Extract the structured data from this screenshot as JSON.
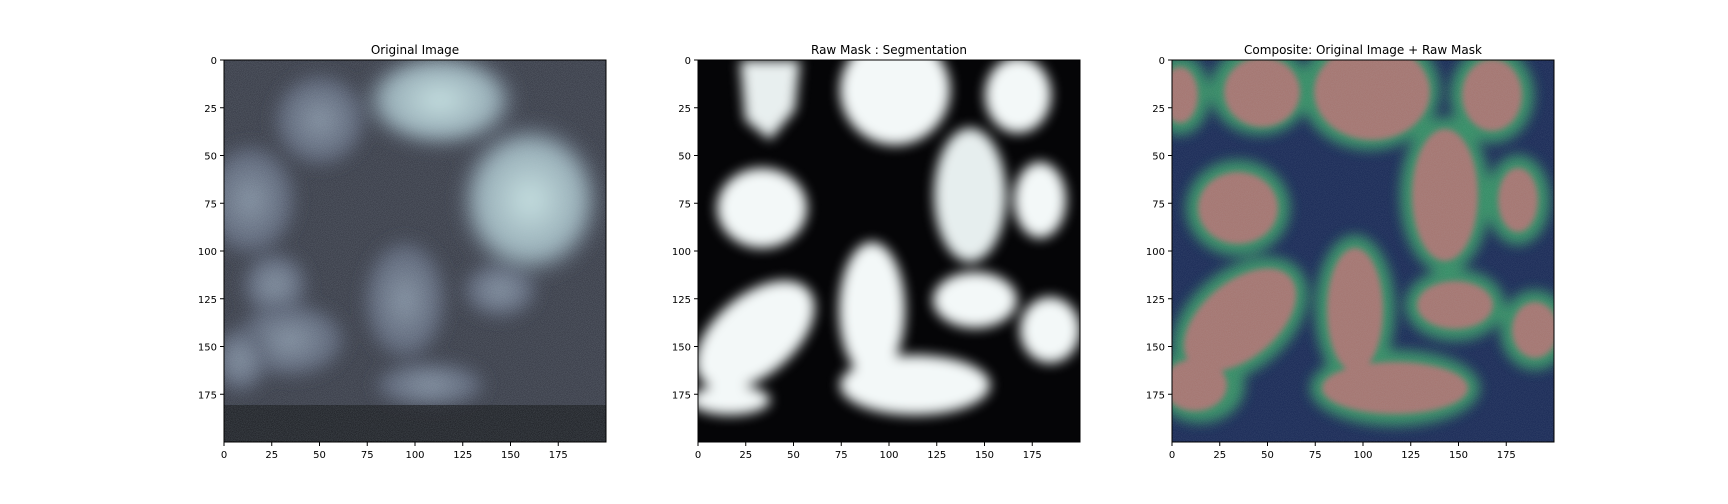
{
  "figure": {
    "panels": [
      {
        "title": "Original Image",
        "x_ticks": [
          "0",
          "25",
          "50",
          "75",
          "100",
          "125",
          "150",
          "175"
        ],
        "y_ticks": [
          "0",
          "25",
          "50",
          "75",
          "100",
          "125",
          "150",
          "175"
        ],
        "colormap": "bone",
        "colors": {
          "low": "#000000",
          "mid": "#545d73",
          "high": "#c6e2e2"
        }
      },
      {
        "title": "Raw Mask : Segmentation",
        "x_ticks": [
          "0",
          "25",
          "50",
          "75",
          "100",
          "125",
          "150",
          "175"
        ],
        "y_ticks": [
          "0",
          "25",
          "50",
          "75",
          "100",
          "125",
          "150",
          "175"
        ],
        "colormap": "bone",
        "colors": {
          "low": "#000000",
          "high": "#ffffff"
        }
      },
      {
        "title": "Composite: Original Image + Raw Mask",
        "x_ticks": [
          "0",
          "25",
          "50",
          "75",
          "100",
          "125",
          "150",
          "175"
        ],
        "y_ticks": [
          "0",
          "25",
          "50",
          "75",
          "100",
          "125",
          "150",
          "175"
        ],
        "colormap": "bone + jet overlay",
        "colors": {
          "background": "#0d1a4a",
          "edge": "#2a8a5a",
          "cell": "#a46f6a"
        }
      }
    ]
  }
}
